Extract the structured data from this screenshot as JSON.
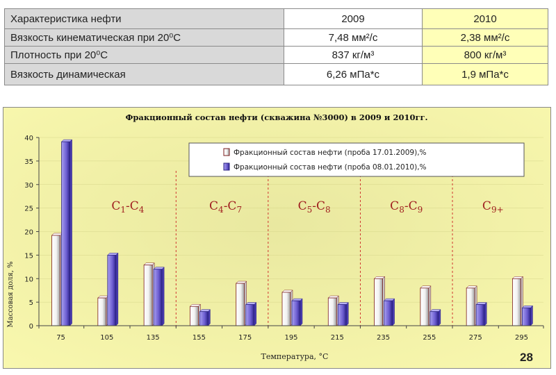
{
  "table": {
    "header": [
      "Характеристика нефти",
      "2009",
      "2010"
    ],
    "rows": [
      [
        "Вязкость кинематическая при 20⁰С",
        "7,48  мм²/с",
        "2,38  мм²/с"
      ],
      [
        "Плотность при 20⁰С",
        "837  кг/м³",
        "800  кг/м³"
      ],
      [
        "Вязкость динамическая",
        "6,26  мПа*с",
        "1,9  мПа*с"
      ]
    ]
  },
  "chart_data": {
    "type": "bar",
    "title": "Фракционный состав нефти  (скважина №3000) в 2009 и 2010гг.",
    "xlabel": "Температура, °С",
    "ylabel": "Массовая доля, %",
    "ylim": [
      0,
      40
    ],
    "yticks": [
      "0",
      "5",
      "10",
      "15",
      "20",
      "25",
      "30",
      "35",
      "40"
    ],
    "categories": [
      "75",
      "105",
      "135",
      "155",
      "175",
      "195",
      "215",
      "235",
      "255",
      "275",
      "295"
    ],
    "series": [
      {
        "name": "Фракционный состав нефти (проба 17.01.2009),%",
        "color": "#ffffff",
        "values": [
          19.2,
          5.9,
          12.9,
          4.1,
          9.0,
          7.1,
          5.9,
          10.0,
          8.0,
          8.0,
          10.0
        ]
      },
      {
        "name": "Фракционный состав нефти (проба 08.01.2010),%",
        "color": "#7b6cd8",
        "values": [
          39.1,
          15.0,
          12.0,
          3.0,
          4.5,
          5.3,
          4.5,
          5.3,
          3.0,
          4.5,
          3.8
        ]
      }
    ],
    "region_labels": [
      {
        "main": "C",
        "s1": "1",
        "mid": "-C",
        "s2": "4"
      },
      {
        "main": "C",
        "s1": "4",
        "mid": "-C",
        "s2": "7"
      },
      {
        "main": "C",
        "s1": "5",
        "mid": "-C",
        "s2": "8"
      },
      {
        "main": "C",
        "s1": "8",
        "mid": "-C",
        "s2": "9"
      },
      {
        "main": "C",
        "s1": "9+",
        "mid": "",
        "s2": ""
      }
    ],
    "legend_position": "top-right",
    "colors": {
      "background": "#f7f6a6",
      "region_label": "#a02020",
      "divider": "#cc2222"
    }
  },
  "page_number": "28"
}
